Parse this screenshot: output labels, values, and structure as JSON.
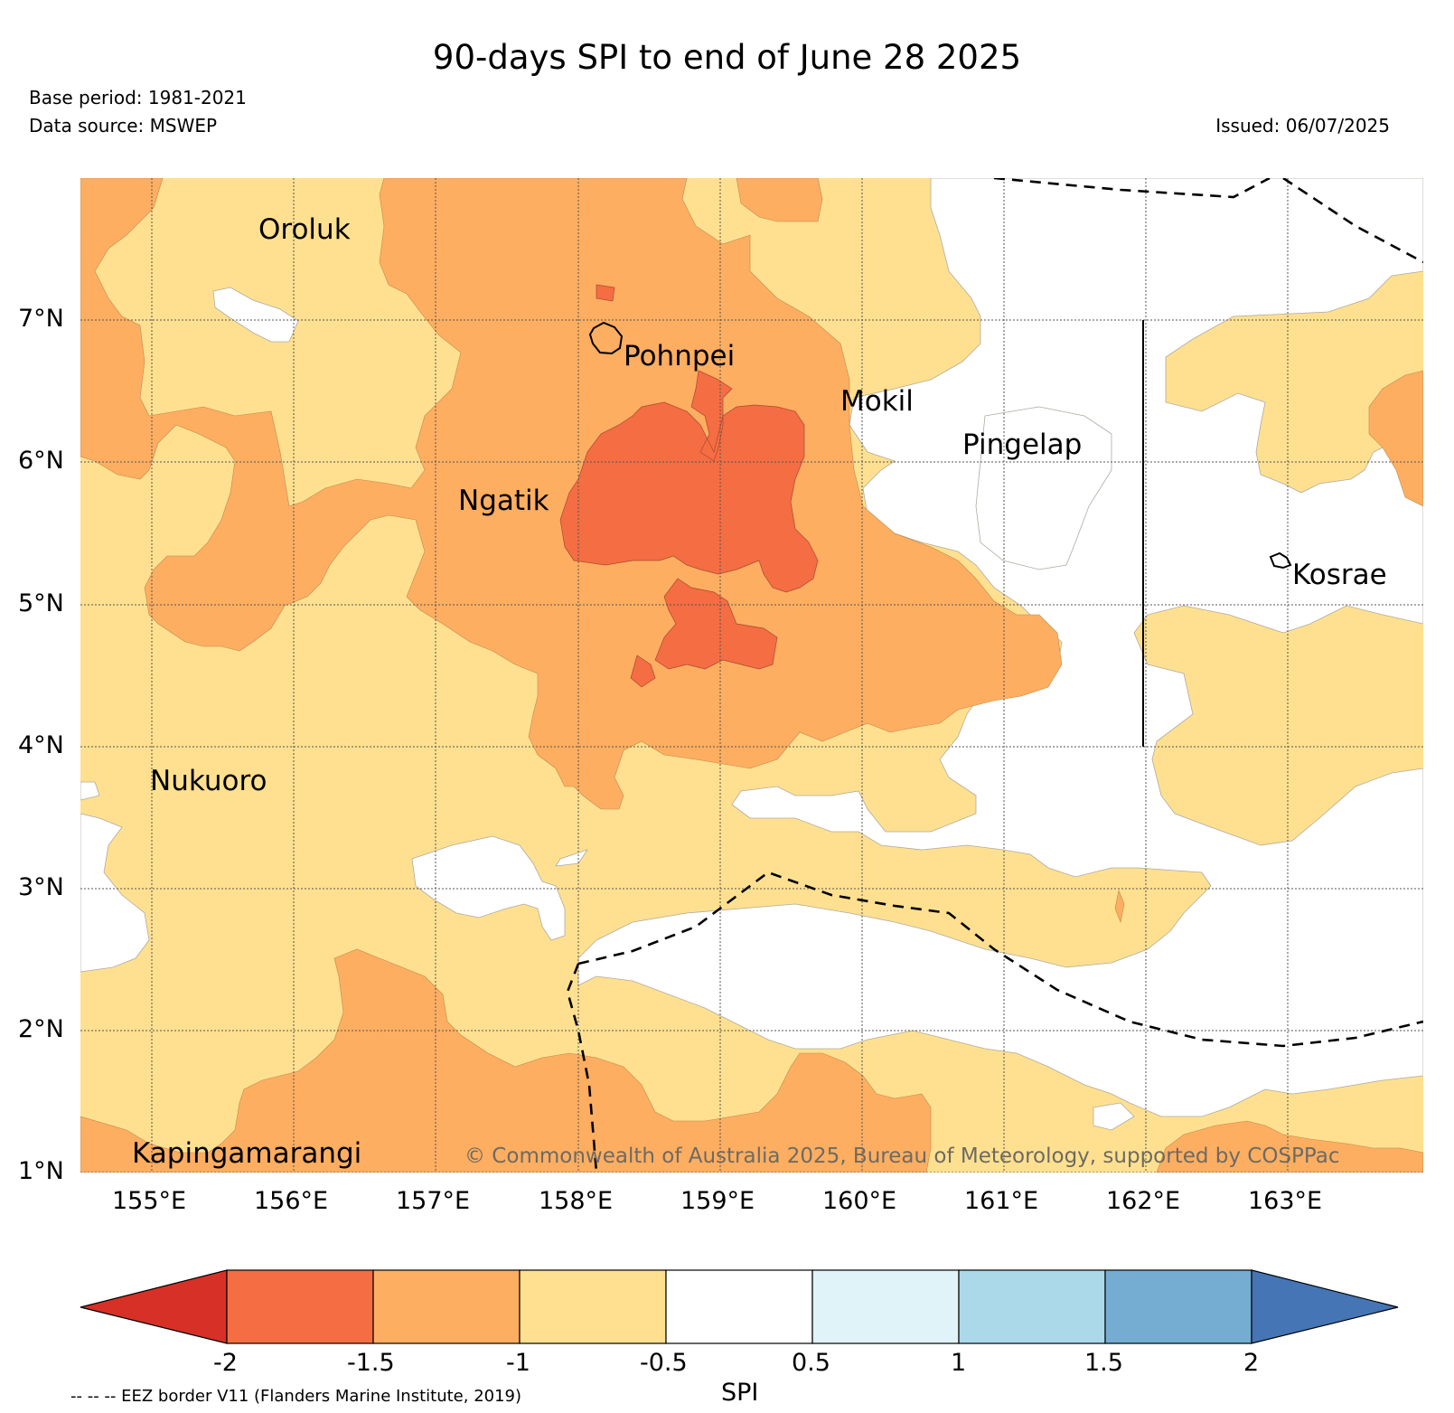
{
  "header": {
    "title": "90-days SPI to end of June 28 2025",
    "base_period": "Base period: 1981-2021",
    "data_source": "Data source: MSWEP",
    "issued": "Issued: 06/07/2025"
  },
  "map": {
    "lon_range": [
      154.5,
      164.0
    ],
    "lat_range": [
      1.0,
      8.0
    ],
    "grid": true,
    "lon_ticks": [
      "155°E",
      "156°E",
      "157°E",
      "158°E",
      "159°E",
      "160°E",
      "161°E",
      "162°E",
      "163°E"
    ],
    "lat_ticks": [
      "7°N",
      "6°N",
      "5°N",
      "4°N",
      "3°N",
      "2°N",
      "1°N"
    ],
    "places": [
      {
        "name": "Oroluk",
        "lon": 155.75,
        "lat": 7.68
      },
      {
        "name": "Pohnpei",
        "lon": 158.25,
        "lat": 6.92
      },
      {
        "name": "Mokil",
        "lon": 159.8,
        "lat": 6.55
      },
      {
        "name": "Pingelap",
        "lon": 160.7,
        "lat": 6.22
      },
      {
        "name": "Ngatik",
        "lon": 157.2,
        "lat": 5.8
      },
      {
        "name": "Kosrae",
        "lon": 162.98,
        "lat": 5.32
      },
      {
        "name": "Nukuoro",
        "lon": 154.97,
        "lat": 3.83
      },
      {
        "name": "Kapingamarangi",
        "lon": 154.8,
        "lat": 1.2
      }
    ],
    "credit": "© Commonwealth of Australia 2025, Bureau of Meteorology, supported by COSPPac"
  },
  "colorbar": {
    "label": "SPI",
    "ticks": [
      "-2",
      "-1.5",
      "-1",
      "-0.5",
      "0.5",
      "1",
      "1.5",
      "2"
    ],
    "colors": [
      "#d73027",
      "#f46d43",
      "#fdae61",
      "#fee090",
      "#ffffff",
      "#e0f3f8",
      "#abd9e9",
      "#74add1",
      "#4575b4"
    ]
  },
  "legend_note": "-- -- -- EEZ border V11 (Flanders Marine Institute, 2019)"
}
